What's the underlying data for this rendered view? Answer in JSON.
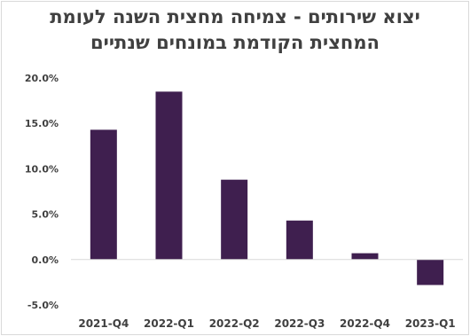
{
  "chart_data": {
    "type": "bar",
    "title_lines": [
      "יצוא שירותים - צמיחה מחצית השנה לעומת",
      "המחצית הקודמת במונחים שנתיים"
    ],
    "categories": [
      "2021-Q4",
      "2022-Q1",
      "2022-Q2",
      "2022-Q3",
      "2022-Q4",
      "2023-Q1"
    ],
    "values": [
      14.3,
      18.5,
      8.8,
      4.3,
      0.7,
      -2.8
    ],
    "xlabel": "",
    "ylabel": "",
    "ylim": [
      -5,
      20
    ],
    "yticks": [
      20,
      15,
      10,
      5,
      0,
      -5
    ],
    "ytick_labels": [
      "20.0%",
      "15.0%",
      "10.0%",
      "5.0%",
      "0.0%",
      "-5.0%"
    ],
    "grid": false,
    "legend": "none",
    "bar_color": "#3f1f4f",
    "axis_color": "#d9d9d9",
    "text_color": "#404040"
  }
}
